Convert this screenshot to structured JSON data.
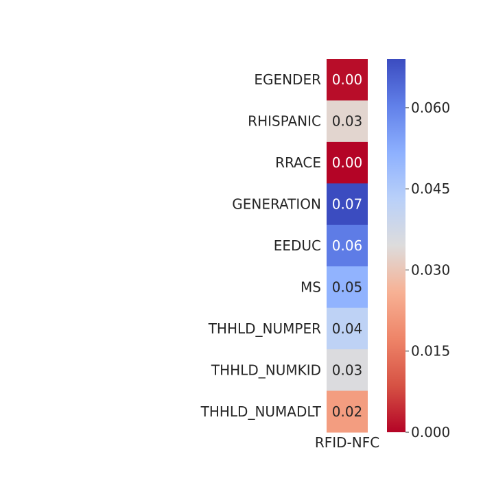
{
  "chart_data": {
    "type": "heatmap",
    "title": "",
    "xlabel": "",
    "ylabel": "",
    "columns": [
      "RFID-NFC"
    ],
    "rows": [
      "EGENDER",
      "RHISPANIC",
      "RRACE",
      "GENERATION",
      "EEDUC",
      "MS",
      "THHLD_NUMPER",
      "THHLD_NUMKID",
      "THHLD_NUMADLT"
    ],
    "values": [
      0.001,
      0.033,
      0.0,
      0.069,
      0.061,
      0.051,
      0.042,
      0.035,
      0.022
    ],
    "annotations": [
      "0.00",
      "0.03",
      "0.00",
      "0.07",
      "0.06",
      "0.05",
      "0.04",
      "0.03",
      "0.02"
    ],
    "colormap": "coolwarm_r",
    "colorbar": {
      "min": 0.0,
      "max": 0.069,
      "ticks": [
        0.0,
        0.015,
        0.03,
        0.045,
        0.06
      ],
      "tick_labels": [
        "0.000",
        "0.015",
        "0.030",
        "0.045",
        "0.060"
      ]
    }
  }
}
